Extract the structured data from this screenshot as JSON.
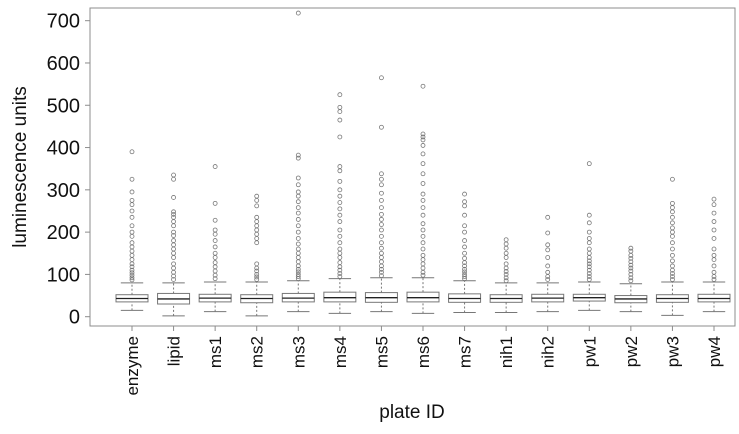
{
  "chart_data": {
    "type": "boxplot",
    "xlabel": "plate ID",
    "ylabel": "luminescence units",
    "ylim": [
      -22,
      730
    ],
    "yticks": [
      0,
      100,
      200,
      300,
      400,
      500,
      600,
      700
    ],
    "grid": false,
    "colors": {
      "box": "#777777",
      "median": "#222222",
      "outlier": "#777777",
      "axis": "#8c8c8c"
    },
    "categories": [
      "enzyme",
      "lipid",
      "ms1",
      "ms2",
      "ms3",
      "ms4",
      "ms5",
      "ms6",
      "ms7",
      "nih1",
      "nih2",
      "pw1",
      "pw2",
      "pw3",
      "pw4"
    ],
    "boxes": [
      {
        "category": "enzyme",
        "whisker_low": 15,
        "q1": 35,
        "median": 43,
        "q3": 52,
        "whisker_high": 80,
        "outliers": [
          87,
          92,
          98,
          104,
          110,
          118,
          125,
          135,
          145,
          155,
          165,
          175,
          190,
          200,
          215,
          235,
          250,
          265,
          275,
          295,
          325,
          390
        ]
      },
      {
        "category": "lipid",
        "whisker_low": 2,
        "q1": 30,
        "median": 42,
        "q3": 55,
        "whisker_high": 80,
        "outliers": [
          88,
          96,
          105,
          115,
          125,
          140,
          150,
          160,
          170,
          180,
          192,
          200,
          215,
          225,
          235,
          242,
          248,
          282,
          325,
          335
        ]
      },
      {
        "category": "ms1",
        "whisker_low": 12,
        "q1": 35,
        "median": 44,
        "q3": 53,
        "whisker_high": 82,
        "outliers": [
          90,
          98,
          108,
          118,
          128,
          140,
          150,
          165,
          180,
          195,
          205,
          228,
          268,
          355
        ]
      },
      {
        "category": "ms2",
        "whisker_low": 2,
        "q1": 33,
        "median": 43,
        "q3": 52,
        "whisker_high": 82,
        "outliers": [
          88,
          94,
          100,
          108,
          115,
          125,
          175,
          185,
          195,
          205,
          215,
          225,
          235,
          262,
          275,
          285
        ]
      },
      {
        "category": "ms3",
        "whisker_low": 12,
        "q1": 35,
        "median": 44,
        "q3": 55,
        "whisker_high": 85,
        "outliers": [
          90,
          95,
          100,
          106,
          112,
          120,
          130,
          140,
          150,
          160,
          172,
          185,
          200,
          215,
          230,
          245,
          258,
          272,
          285,
          295,
          312,
          328,
          375,
          382,
          718
        ]
      },
      {
        "category": "ms4",
        "whisker_low": 8,
        "q1": 35,
        "median": 45,
        "q3": 58,
        "whisker_high": 90,
        "outliers": [
          95,
          102,
          110,
          118,
          128,
          140,
          150,
          160,
          175,
          190,
          205,
          225,
          240,
          255,
          270,
          285,
          300,
          320,
          345,
          355,
          425,
          465,
          485,
          495,
          525
        ]
      },
      {
        "category": "ms5",
        "whisker_low": 12,
        "q1": 34,
        "median": 45,
        "q3": 57,
        "whisker_high": 92,
        "outliers": [
          97,
          105,
          112,
          120,
          130,
          140,
          150,
          162,
          175,
          190,
          205,
          218,
          230,
          242,
          258,
          275,
          292,
          312,
          325,
          338,
          448,
          565
        ]
      },
      {
        "category": "ms6",
        "whisker_low": 8,
        "q1": 35,
        "median": 45,
        "q3": 58,
        "whisker_high": 92,
        "outliers": [
          98,
          105,
          115,
          125,
          135,
          145,
          160,
          175,
          190,
          205,
          220,
          240,
          258,
          275,
          290,
          315,
          338,
          362,
          385,
          405,
          418,
          425,
          432,
          545
        ]
      },
      {
        "category": "ms7",
        "whisker_low": 10,
        "q1": 34,
        "median": 43,
        "q3": 54,
        "whisker_high": 85,
        "outliers": [
          90,
          95,
          100,
          106,
          112,
          120,
          128,
          138,
          150,
          165,
          180,
          200,
          215,
          240,
          262,
          272,
          290
        ]
      },
      {
        "category": "nih1",
        "whisker_low": 10,
        "q1": 34,
        "median": 43,
        "q3": 52,
        "whisker_high": 80,
        "outliers": [
          85,
          92,
          100,
          107,
          115,
          125,
          140,
          150,
          162,
          172,
          182
        ]
      },
      {
        "category": "nih2",
        "whisker_low": 12,
        "q1": 35,
        "median": 44,
        "q3": 53,
        "whisker_high": 80,
        "outliers": [
          88,
          95,
          105,
          120,
          140,
          158,
          170,
          198,
          235
        ]
      },
      {
        "category": "pw1",
        "whisker_low": 15,
        "q1": 37,
        "median": 45,
        "q3": 53,
        "whisker_high": 82,
        "outliers": [
          88,
          95,
          102,
          110,
          118,
          125,
          132,
          140,
          150,
          160,
          175,
          185,
          200,
          222,
          240,
          362
        ]
      },
      {
        "category": "pw2",
        "whisker_low": 12,
        "q1": 33,
        "median": 42,
        "q3": 50,
        "whisker_high": 78,
        "outliers": [
          85,
          92,
          100,
          108,
          115,
          122,
          130,
          138,
          145,
          155,
          162
        ]
      },
      {
        "category": "pw3",
        "whisker_low": 3,
        "q1": 34,
        "median": 43,
        "q3": 52,
        "whisker_high": 82,
        "outliers": [
          88,
          95,
          102,
          110,
          120,
          132,
          145,
          160,
          175,
          190,
          200,
          210,
          222,
          235,
          248,
          258,
          268,
          325
        ]
      },
      {
        "category": "pw4",
        "whisker_low": 12,
        "q1": 35,
        "median": 43,
        "q3": 53,
        "whisker_high": 82,
        "outliers": [
          88,
          95,
          105,
          120,
          135,
          145,
          160,
          185,
          205,
          225,
          245,
          265,
          278
        ]
      }
    ]
  }
}
